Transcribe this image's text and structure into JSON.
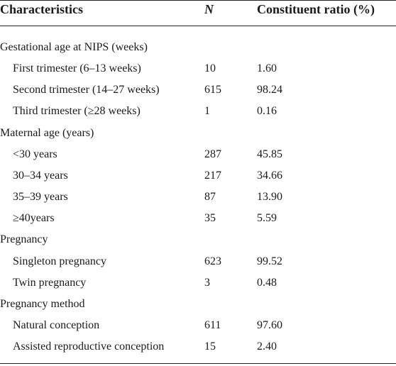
{
  "header": {
    "characteristics": "Characteristics",
    "n": "N",
    "ratio": "Constituent ratio (%)"
  },
  "groups": [
    {
      "label": "Gestational age at NIPS (weeks)",
      "rows": [
        {
          "label": "First trimester (6–13 weeks)",
          "n": "10",
          "ratio": "1.60"
        },
        {
          "label": "Second trimester (14–27 weeks)",
          "n": "615",
          "ratio": "98.24"
        },
        {
          "label": "Third trimester (≥28 weeks)",
          "n": "1",
          "ratio": "0.16"
        }
      ]
    },
    {
      "label": "Maternal age (years)",
      "rows": [
        {
          "label": "<30 years",
          "n": "287",
          "ratio": "45.85"
        },
        {
          "label": "30–34 years",
          "n": "217",
          "ratio": "34.66"
        },
        {
          "label": "35–39 years",
          "n": "87",
          "ratio": "13.90"
        },
        {
          "label": "≥40years",
          "n": "35",
          "ratio": "5.59"
        }
      ]
    },
    {
      "label": "Pregnancy",
      "rows": [
        {
          "label": "Singleton pregnancy",
          "n": "623",
          "ratio": "99.52"
        },
        {
          "label": "Twin pregnancy",
          "n": "3",
          "ratio": "0.48"
        }
      ]
    },
    {
      "label": "Pregnancy method",
      "rows": [
        {
          "label": "Natural conception",
          "n": "611",
          "ratio": "97.60"
        },
        {
          "label": "Assisted reproductive conception",
          "n": "15",
          "ratio": "2.40"
        }
      ]
    }
  ]
}
